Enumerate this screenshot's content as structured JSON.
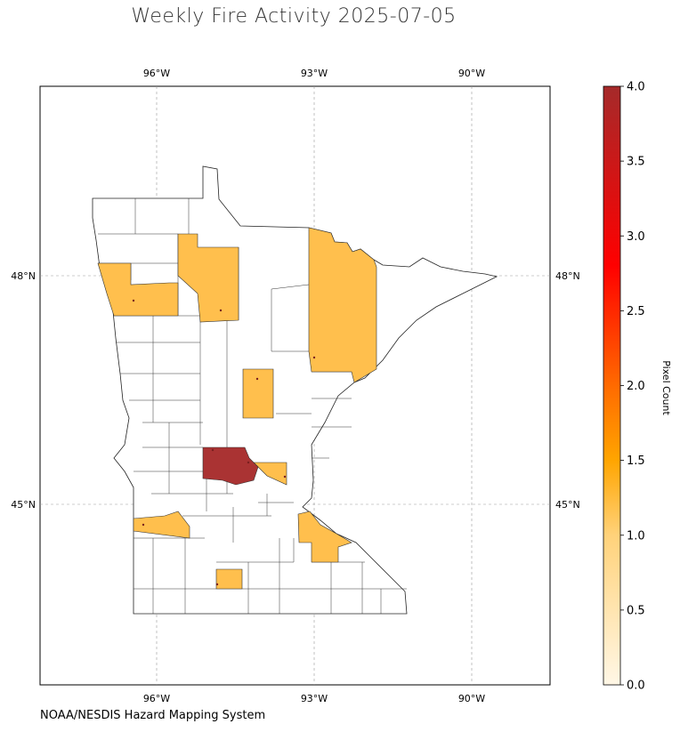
{
  "title": "Weekly Fire Activity 2025-07-05",
  "footer": "NOAA/NESDIS Hazard Mapping System",
  "map": {
    "lon_ticks": [
      "96°W",
      "93°W",
      "90°W"
    ],
    "lat_ticks": [
      "48°N",
      "45°N"
    ],
    "grid": true
  },
  "colorbar": {
    "label": "Pixel Count",
    "ticks": [
      "0.0",
      "0.5",
      "1.0",
      "1.5",
      "2.0",
      "2.5",
      "3.0",
      "3.5",
      "4.0"
    ],
    "colors": [
      "#fff7e6",
      "#ffd27a",
      "#ffa500",
      "#ff6a00",
      "#ff0000",
      "#a52a2a"
    ]
  },
  "colors": {
    "one_pixel": "#ffbf4d",
    "four_pixels": "#aa3333",
    "county_border": "#333333"
  }
}
